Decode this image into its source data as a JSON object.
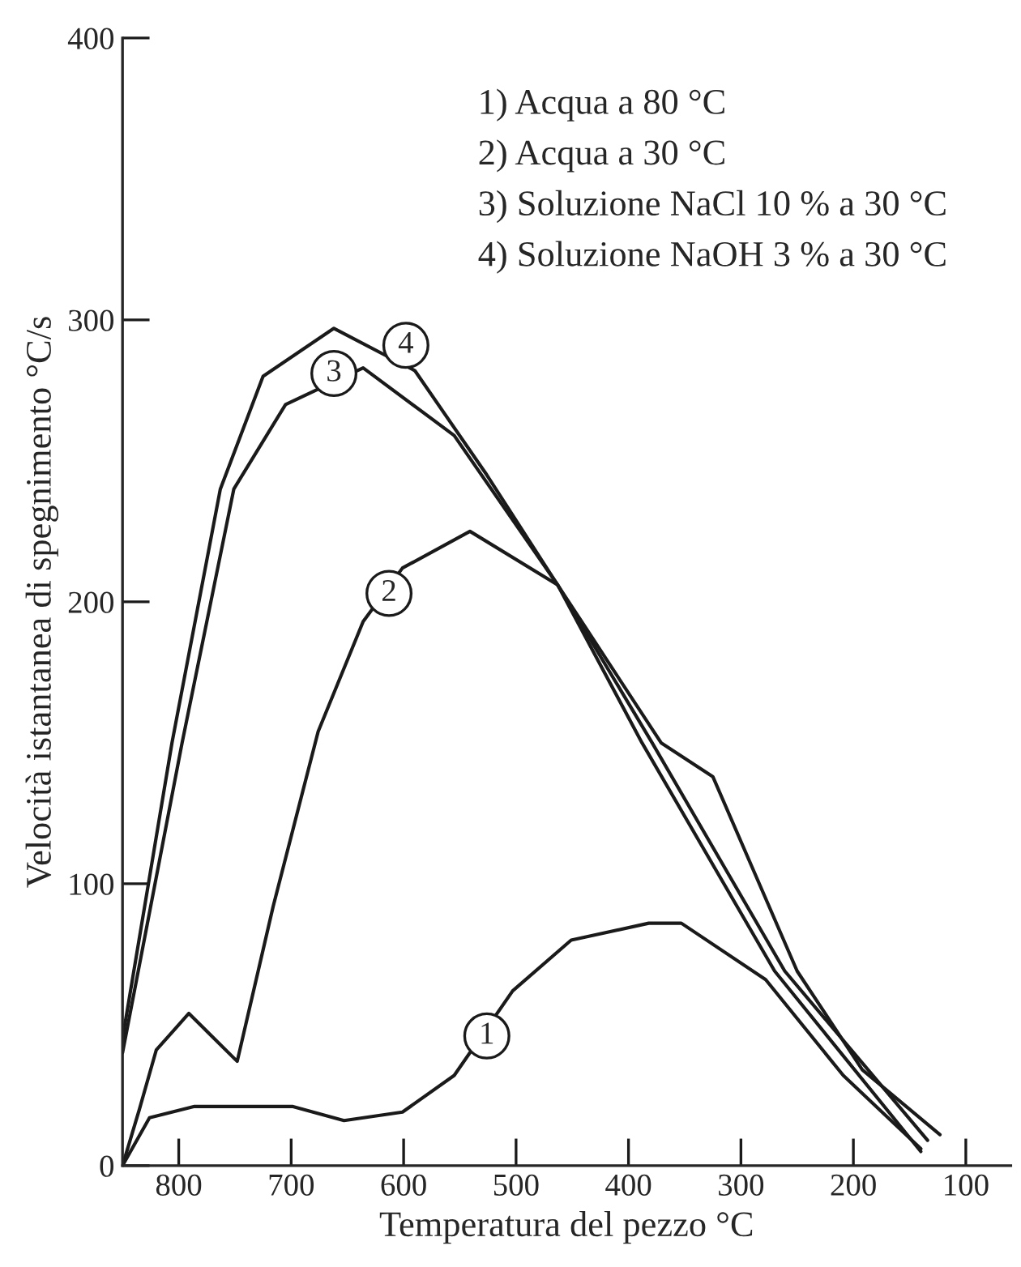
{
  "chart_data": {
    "type": "line",
    "xlabel": "Temperatura del pezzo °C",
    "ylabel": "Velocità istantanea di spegnimento °C/s",
    "xlim": [
      850,
      60
    ],
    "ylim": [
      0,
      400
    ],
    "xticks": [
      800,
      700,
      600,
      500,
      400,
      300,
      200,
      100
    ],
    "yticks": [
      0,
      100,
      200,
      300,
      400
    ],
    "grid": false,
    "legend": false,
    "marker": "none",
    "line_style": "solid",
    "series": [
      {
        "color": "#1a1a1a",
        "x": [
          850,
          826,
          786,
          740,
          699,
          653,
          601,
          555,
          503,
          451,
          382,
          353,
          278,
          209,
          140
        ],
        "values": [
          0,
          17,
          21,
          21,
          21,
          16,
          19,
          32,
          62,
          80,
          86,
          86,
          66,
          32,
          6
        ]
      },
      {
        "color": "#1a1a1a",
        "x": [
          850,
          835,
          820,
          791,
          748,
          716,
          676,
          636,
          601,
          541,
          463,
          388,
          270,
          140
        ],
        "values": [
          0,
          20,
          41,
          54,
          37,
          92,
          154,
          193,
          212,
          225,
          206,
          150,
          69,
          5
        ]
      },
      {
        "color": "#1a1a1a",
        "x": [
          850,
          797,
          751,
          705,
          636,
          555,
          463,
          379,
          261,
          134
        ],
        "values": [
          40,
          150,
          240,
          270,
          283,
          259,
          206,
          150,
          69,
          9
        ]
      },
      {
        "color": "#1a1a1a",
        "x": [
          850,
          806,
          763,
          725,
          662,
          590,
          526,
          463,
          371,
          325,
          250,
          192,
          123
        ],
        "values": [
          45,
          150,
          240,
          280,
          297,
          282,
          245,
          206,
          150,
          138,
          69,
          34,
          11
        ]
      }
    ],
    "annotations": [
      {
        "text": "1",
        "x": 526,
        "y": 46
      },
      {
        "text": "2",
        "x": 613,
        "y": 203
      },
      {
        "text": "3",
        "x": 662,
        "y": 281
      },
      {
        "text": "4",
        "x": 598,
        "y": 291
      },
      "1) Acqua a 80 °C",
      "2) Acqua a 30 °C",
      "3) Soluzione NaCl 10 % a 30 °C",
      "4) Soluzione NaOH 3 % a 30 °C"
    ]
  }
}
